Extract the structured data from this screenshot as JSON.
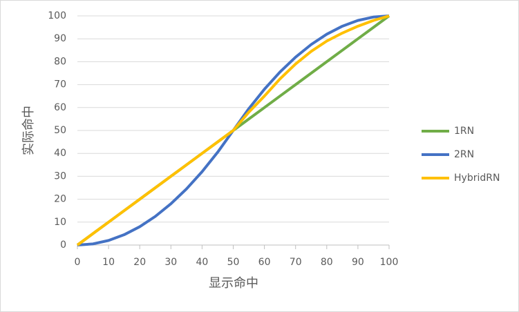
{
  "chart_data": {
    "type": "line",
    "x_label": "显示命中",
    "y_label": "实际命中",
    "x": [
      0,
      5,
      10,
      15,
      20,
      25,
      30,
      35,
      40,
      45,
      50,
      55,
      60,
      65,
      70,
      75,
      80,
      85,
      90,
      95,
      100
    ],
    "series": [
      {
        "name": "1RN",
        "color": "#70ad47",
        "values": [
          0,
          5,
          10,
          15,
          20,
          25,
          30,
          35,
          40,
          45,
          50,
          55,
          60,
          65,
          70,
          75,
          80,
          85,
          90,
          95,
          100
        ]
      },
      {
        "name": "2RN",
        "color": "#4472c4",
        "values": [
          0,
          0.5,
          2,
          4.5,
          8,
          12.5,
          18,
          24.5,
          32,
          40.5,
          50,
          59.5,
          68,
          75.5,
          82,
          87.5,
          92,
          95.5,
          98,
          99.5,
          100
        ]
      },
      {
        "name": "HybridRN",
        "color": "#ffc000",
        "values": [
          0,
          5,
          10,
          15,
          20,
          25,
          30,
          35,
          40,
          45,
          50,
          58,
          65,
          72.5,
          79,
          84.5,
          89,
          92.5,
          95.5,
          98,
          100
        ]
      }
    ],
    "xlim": [
      0,
      100
    ],
    "xticks": [
      0,
      10,
      20,
      30,
      40,
      50,
      60,
      70,
      80,
      90,
      100
    ],
    "ylim": [
      0,
      100
    ],
    "yticks": [
      0,
      10,
      20,
      30,
      40,
      50,
      60,
      70,
      80,
      90,
      100
    ],
    "grid": true,
    "legend": "right"
  }
}
